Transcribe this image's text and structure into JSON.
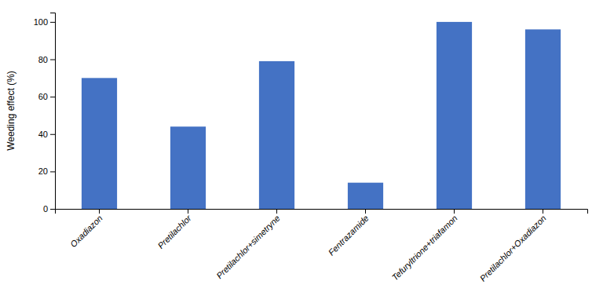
{
  "chart_data": {
    "type": "bar",
    "categories": [
      "Oxadiazon",
      "Pretilachlor",
      "Pretilachlor+simetryne",
      "Fentrazamide",
      "Tefuryltrione+triafamon",
      "Pretilachlor+Oxadiazon"
    ],
    "values": [
      70,
      44,
      79,
      14,
      100,
      96
    ],
    "color": "#4472C4",
    "ylabel": "Weeding effect (%)",
    "ylim": [
      0,
      105
    ],
    "yticks": [
      0,
      20,
      40,
      60,
      80,
      100
    ],
    "grid": false
  }
}
